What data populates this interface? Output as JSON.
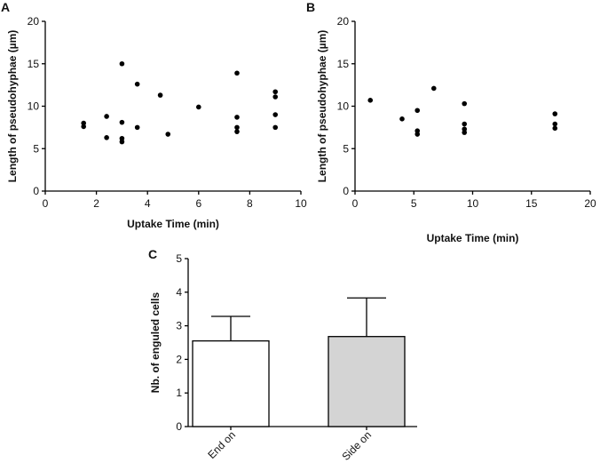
{
  "chart_data": [
    {
      "panel": "A",
      "type": "scatter",
      "xlabel": "Uptake Time (min)",
      "ylabel": "Length of pseudohyphae (µm)",
      "xlim": [
        0,
        10
      ],
      "ylim": [
        0,
        20
      ],
      "xticks": [
        "0",
        "2",
        "4",
        "6",
        "8",
        "10"
      ],
      "yticks": [
        "0",
        "5",
        "10",
        "15",
        "20"
      ],
      "marker_color": "#000000",
      "points": [
        [
          1.5,
          8.0
        ],
        [
          1.5,
          7.6
        ],
        [
          2.4,
          8.8
        ],
        [
          2.4,
          6.3
        ],
        [
          3.0,
          15.0
        ],
        [
          3.0,
          8.1
        ],
        [
          3.0,
          6.2
        ],
        [
          3.0,
          5.8
        ],
        [
          3.6,
          12.6
        ],
        [
          3.6,
          7.5
        ],
        [
          4.5,
          11.3
        ],
        [
          4.8,
          6.7
        ],
        [
          6.0,
          9.9
        ],
        [
          7.5,
          13.9
        ],
        [
          7.5,
          8.7
        ],
        [
          7.5,
          7.5
        ],
        [
          7.5,
          7.0
        ],
        [
          9.0,
          11.7
        ],
        [
          9.0,
          11.1
        ],
        [
          9.0,
          9.0
        ],
        [
          9.0,
          7.5
        ]
      ]
    },
    {
      "panel": "B",
      "type": "scatter",
      "xlabel": "Uptake Time (min)",
      "ylabel": "Length of pseudohyphae (µm)",
      "xlim": [
        0,
        20
      ],
      "ylim": [
        0,
        20
      ],
      "xticks": [
        "0",
        "5",
        "10",
        "15",
        "20"
      ],
      "yticks": [
        "0",
        "5",
        "10",
        "15",
        "20"
      ],
      "marker_color": "#000000",
      "points": [
        [
          1.3,
          10.7
        ],
        [
          4.0,
          8.5
        ],
        [
          5.3,
          9.5
        ],
        [
          5.3,
          7.1
        ],
        [
          5.3,
          6.7
        ],
        [
          6.7,
          12.1
        ],
        [
          9.3,
          10.3
        ],
        [
          9.3,
          7.9
        ],
        [
          9.3,
          7.3
        ],
        [
          9.3,
          6.9
        ],
        [
          17.0,
          9.1
        ],
        [
          17.0,
          7.9
        ],
        [
          17.0,
          7.4
        ]
      ]
    },
    {
      "panel": "C",
      "type": "bar",
      "ylabel": "Nb. of enguled cells",
      "ylim": [
        0,
        5
      ],
      "yticks": [
        "0",
        "1",
        "2",
        "3",
        "4",
        "5"
      ],
      "categories": [
        "End on",
        "Side on"
      ],
      "values": [
        2.55,
        2.68
      ],
      "errors": [
        0.73,
        1.15
      ],
      "bar_colors": [
        "#ffffff",
        "#d4d4d4"
      ]
    }
  ]
}
